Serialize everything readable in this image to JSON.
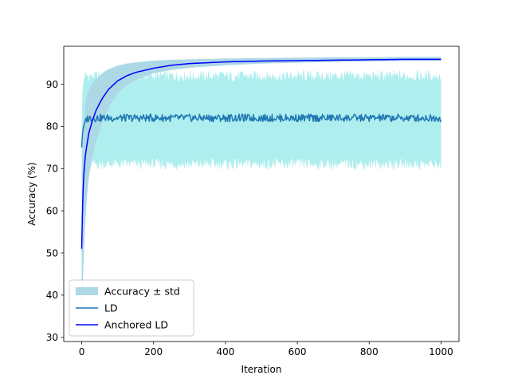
{
  "chart_data": {
    "type": "line",
    "title": "",
    "xlabel": "Iteration",
    "ylabel": "Accuracy (%)",
    "xlim": [
      -50,
      1050
    ],
    "ylim": [
      29,
      99
    ],
    "xticks": [
      0,
      200,
      400,
      600,
      800,
      1000
    ],
    "yticks": [
      30,
      40,
      50,
      60,
      70,
      80,
      90
    ],
    "grid": false,
    "legend_placement": "lower-left",
    "legend": [
      "Accuracy ± std",
      "LD",
      "Anchored LD"
    ],
    "colors": {
      "std_band_wide": "#afeeee",
      "std_band_anchored": "#add8e6",
      "ld": "#1f77b4",
      "anchored_ld": "#0000ff"
    },
    "series": [
      {
        "name": "LD",
        "kind": "line",
        "x": [
          0,
          2,
          5,
          10,
          15,
          20,
          30,
          50,
          100,
          200,
          300,
          400,
          500,
          600,
          700,
          800,
          900,
          1000
        ],
        "y": [
          75,
          78,
          80,
          81.5,
          81.8,
          82,
          82,
          82,
          82,
          82,
          82,
          82,
          82,
          82,
          82,
          82,
          82,
          82
        ]
      },
      {
        "name": "LD band",
        "kind": "band",
        "x": [
          0,
          2,
          5,
          10,
          20,
          50,
          100,
          1000
        ],
        "lower": [
          45,
          60,
          68,
          70,
          71,
          71,
          71,
          71
        ],
        "upper": [
          80,
          88,
          91,
          92,
          92,
          92,
          92,
          92
        ]
      },
      {
        "name": "Anchored LD",
        "kind": "line",
        "x": [
          0,
          3,
          6,
          10,
          15,
          20,
          30,
          40,
          50,
          60,
          75,
          100,
          125,
          150,
          200,
          250,
          300,
          400,
          500,
          600,
          700,
          800,
          900,
          1000
        ],
        "y": [
          51,
          63,
          69,
          73,
          76,
          78.5,
          81.5,
          83.8,
          85.5,
          87,
          88.8,
          90.8,
          92,
          92.8,
          93.8,
          94.5,
          94.9,
          95.3,
          95.5,
          95.6,
          95.7,
          95.8,
          95.9,
          95.9
        ]
      },
      {
        "name": "Anchored LD band",
        "kind": "band",
        "x": [
          0,
          3,
          6,
          10,
          15,
          20,
          30,
          40,
          50,
          60,
          75,
          100,
          125,
          150,
          200,
          250,
          300,
          400,
          500,
          600,
          700,
          800,
          900,
          1000
        ],
        "lower": [
          35,
          42,
          50,
          58,
          64,
          68,
          73,
          76.5,
          79,
          81.5,
          84.5,
          87.8,
          89.8,
          91,
          92.6,
          93.4,
          93.9,
          94.5,
          94.9,
          95.1,
          95.3,
          95.4,
          95.5,
          95.5
        ],
        "upper": [
          62,
          76,
          82,
          85.5,
          87.5,
          88.8,
          90.2,
          91.3,
          92,
          92.8,
          93.6,
          94.4,
          94.9,
          95.2,
          95.6,
          95.8,
          95.9,
          96.1,
          96.2,
          96.3,
          96.4,
          96.4,
          96.5,
          96.5
        ]
      }
    ]
  }
}
